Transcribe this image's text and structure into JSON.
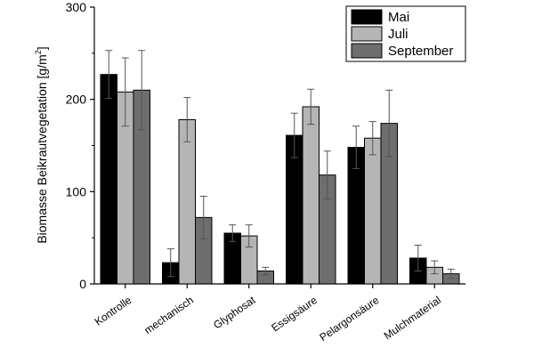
{
  "chart_data": {
    "type": "bar",
    "ylabel_main": "Biomasse Beikrautvegetation [g/m",
    "ylabel_sup": "2",
    "ylabel_end": "]",
    "xlabel": "",
    "ylim": [
      0,
      300
    ],
    "yticks": [
      "0",
      "100",
      "200",
      "300"
    ],
    "ytick_values": [
      0,
      100,
      200,
      300
    ],
    "categories": [
      "Kontrolle",
      "mechanisch",
      "Glyphosat",
      "Essigsäure",
      "Pelargonsäure",
      "Mulchmaterial"
    ],
    "series": [
      {
        "name": "Mai",
        "color": "#000000",
        "values": [
          227,
          23,
          55,
          161,
          148,
          28
        ],
        "errors": [
          26,
          15,
          9,
          24,
          23,
          14
        ]
      },
      {
        "name": "Juli",
        "color": "#b5b5b5",
        "values": [
          208,
          178,
          52,
          192,
          158,
          18
        ],
        "errors": [
          37,
          24,
          12,
          19,
          18,
          7
        ]
      },
      {
        "name": "September",
        "color": "#6e6e6e",
        "values": [
          210,
          72,
          14,
          118,
          174,
          11
        ],
        "errors": [
          43,
          23,
          4,
          26,
          36,
          5
        ]
      }
    ],
    "legend_position": "top-right",
    "grid": false
  }
}
